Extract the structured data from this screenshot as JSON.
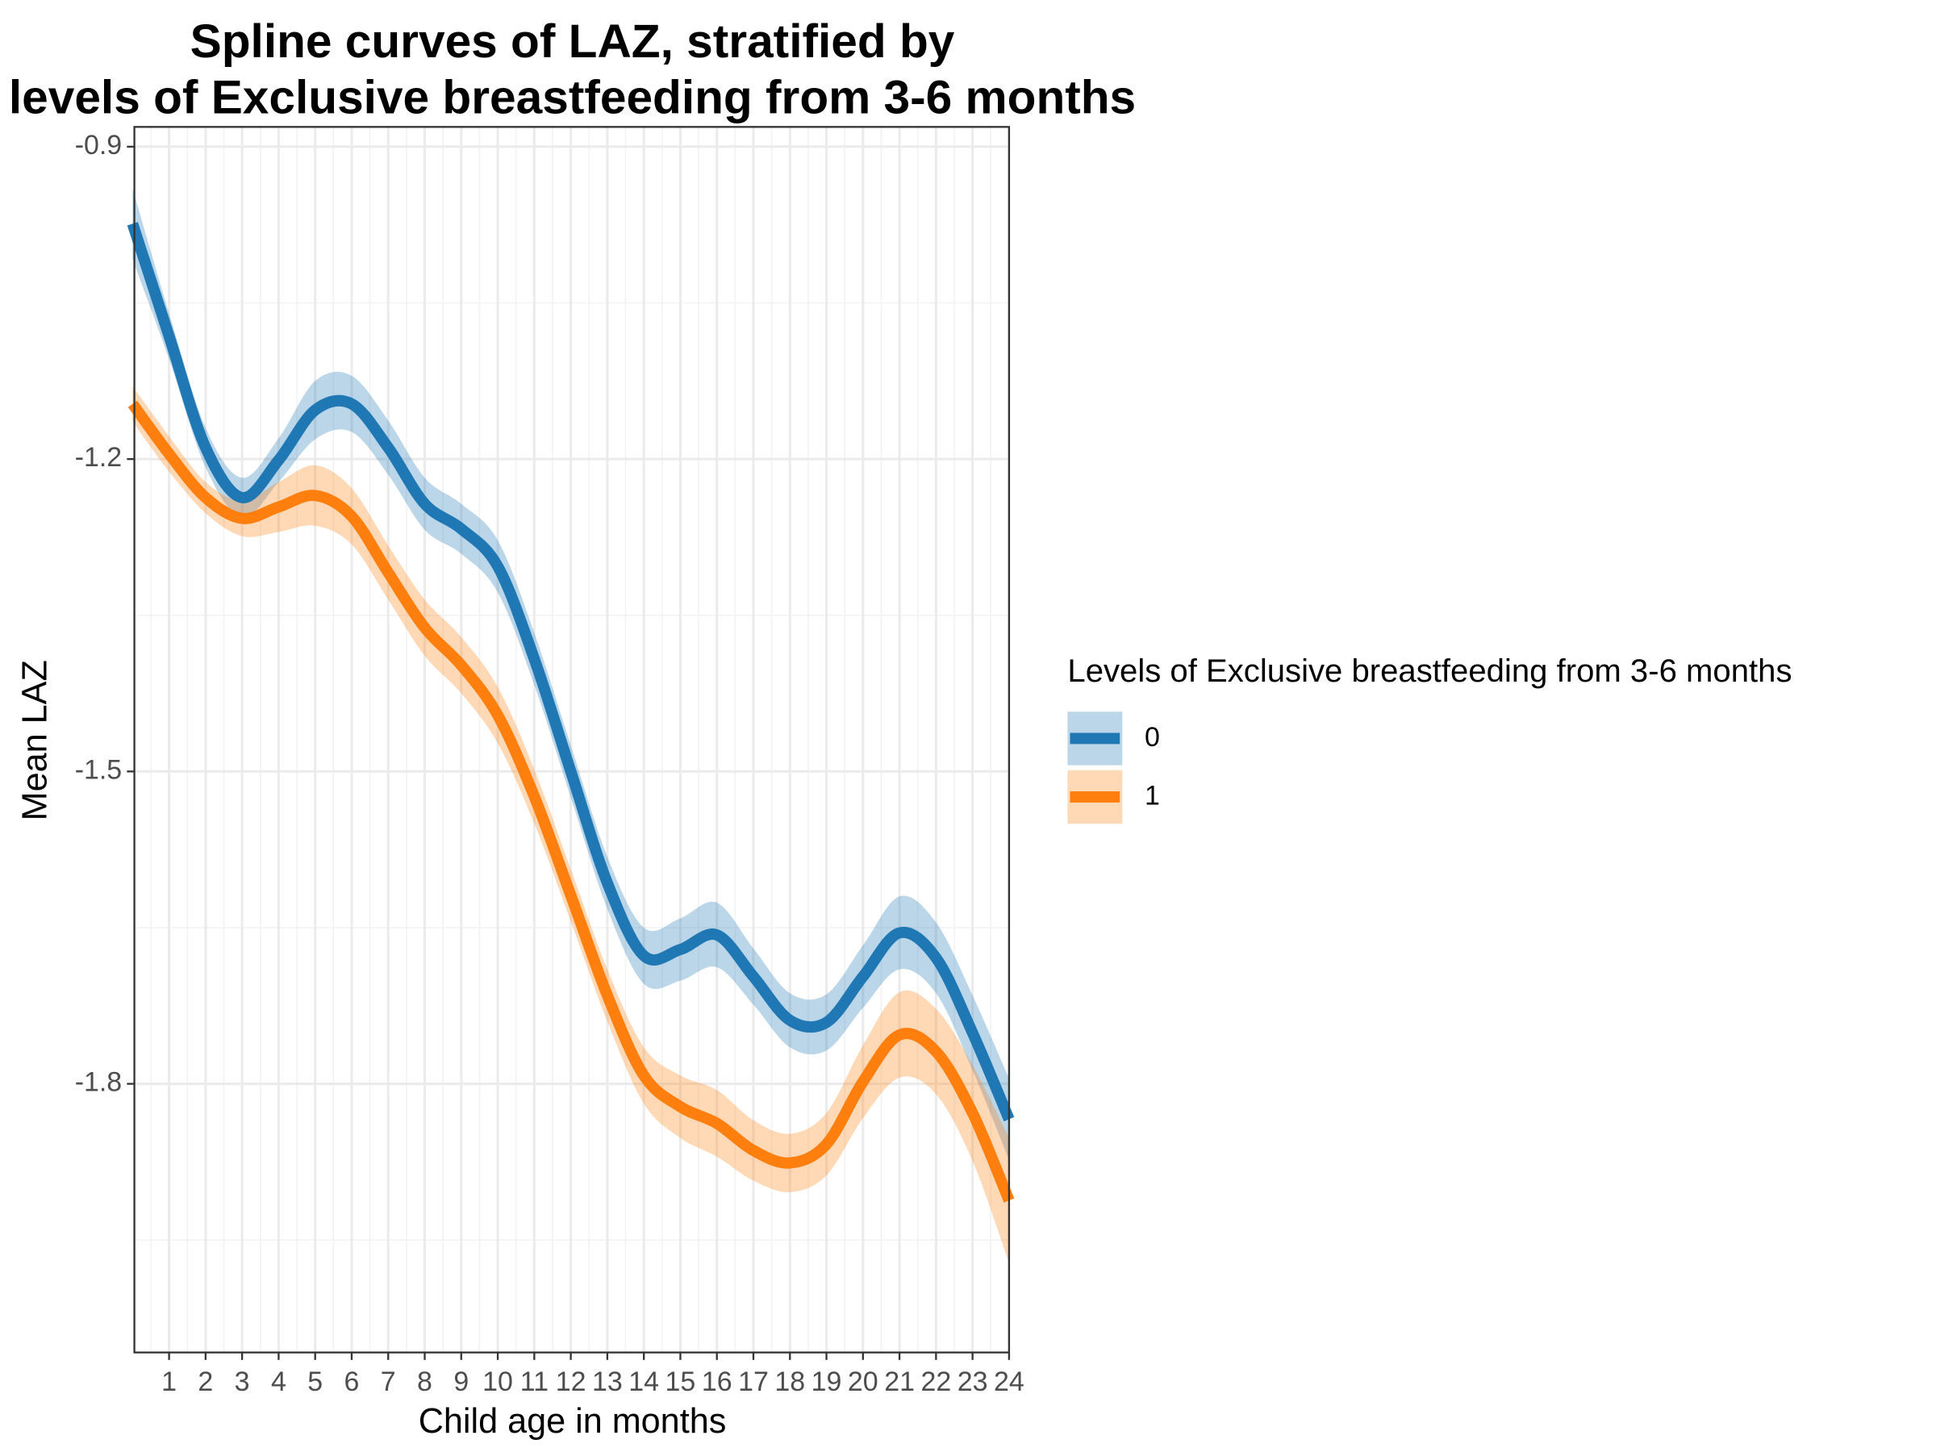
{
  "chart_data": {
    "type": "line",
    "title": [
      "Spline curves of LAZ, stratified by",
      "levels of Exclusive breastfeeding from 3-6 months"
    ],
    "x_label": "Child age in months",
    "y_label": "Mean LAZ",
    "legend_title": "Levels of Exclusive breastfeeding from 3-6 months",
    "legend_position": "right",
    "x": [
      0,
      1,
      2,
      3,
      4,
      5,
      6,
      7,
      8,
      9,
      10,
      11,
      12,
      13,
      14,
      15,
      16,
      17,
      18,
      19,
      20,
      21,
      22,
      23,
      24
    ],
    "series": [
      {
        "name": "0",
        "color": "#1f77b4",
        "values": [
          -0.974,
          -1.082,
          -1.189,
          -1.237,
          -1.201,
          -1.153,
          -1.147,
          -1.189,
          -1.243,
          -1.267,
          -1.303,
          -1.392,
          -1.5,
          -1.607,
          -1.677,
          -1.671,
          -1.657,
          -1.697,
          -1.739,
          -1.741,
          -1.697,
          -1.655,
          -1.679,
          -1.751,
          -1.834
        ],
        "upper": [
          -0.94,
          -1.06,
          -1.17,
          -1.218,
          -1.18,
          -1.125,
          -1.12,
          -1.163,
          -1.218,
          -1.243,
          -1.278,
          -1.367,
          -1.475,
          -1.582,
          -1.65,
          -1.641,
          -1.626,
          -1.67,
          -1.713,
          -1.714,
          -1.667,
          -1.62,
          -1.645,
          -1.715,
          -1.795
        ],
        "lower": [
          -1.008,
          -1.104,
          -1.208,
          -1.256,
          -1.222,
          -1.181,
          -1.174,
          -1.215,
          -1.268,
          -1.291,
          -1.328,
          -1.417,
          -1.525,
          -1.632,
          -1.704,
          -1.701,
          -1.688,
          -1.724,
          -1.765,
          -1.768,
          -1.727,
          -1.69,
          -1.713,
          -1.787,
          -1.873
        ]
      },
      {
        "name": "1",
        "color": "#ff7f0e",
        "values": [
          -1.147,
          -1.195,
          -1.237,
          -1.257,
          -1.246,
          -1.235,
          -1.255,
          -1.309,
          -1.362,
          -1.398,
          -1.446,
          -1.524,
          -1.619,
          -1.715,
          -1.792,
          -1.822,
          -1.838,
          -1.864,
          -1.876,
          -1.858,
          -1.798,
          -1.753,
          -1.769,
          -1.828,
          -1.912
        ],
        "upper": [
          -1.13,
          -1.178,
          -1.222,
          -1.24,
          -1.222,
          -1.206,
          -1.228,
          -1.283,
          -1.335,
          -1.371,
          -1.419,
          -1.498,
          -1.594,
          -1.69,
          -1.765,
          -1.792,
          -1.806,
          -1.835,
          -1.848,
          -1.828,
          -1.763,
          -1.712,
          -1.728,
          -1.782,
          -1.852
        ],
        "lower": [
          -1.164,
          -1.212,
          -1.252,
          -1.274,
          -1.27,
          -1.264,
          -1.282,
          -1.335,
          -1.389,
          -1.425,
          -1.473,
          -1.55,
          -1.644,
          -1.74,
          -1.819,
          -1.852,
          -1.87,
          -1.893,
          -1.904,
          -1.888,
          -1.833,
          -1.794,
          -1.81,
          -1.874,
          -1.972
        ]
      }
    ],
    "xlim": [
      0.05,
      24
    ],
    "ylim": [
      -2.058,
      -0.881
    ],
    "xticks": [
      1,
      2,
      3,
      4,
      5,
      6,
      7,
      8,
      9,
      10,
      11,
      12,
      13,
      14,
      15,
      16,
      17,
      18,
      19,
      20,
      21,
      22,
      23,
      24
    ],
    "yticks": [
      -1.8,
      -1.5,
      -1.2,
      -0.9
    ],
    "xminor": [
      0.5,
      1.5,
      2.5,
      3.5,
      4.5,
      5.5,
      6.5,
      7.5,
      8.5,
      9.5,
      10.5,
      11.5,
      12.5,
      13.5,
      14.5,
      15.5,
      16.5,
      17.5,
      18.5,
      19.5,
      20.5,
      21.5,
      22.5,
      23.5
    ],
    "yminor": [
      -1.95,
      -1.65,
      -1.35,
      -1.05
    ],
    "grid": true,
    "band_opacity": 0.3
  }
}
